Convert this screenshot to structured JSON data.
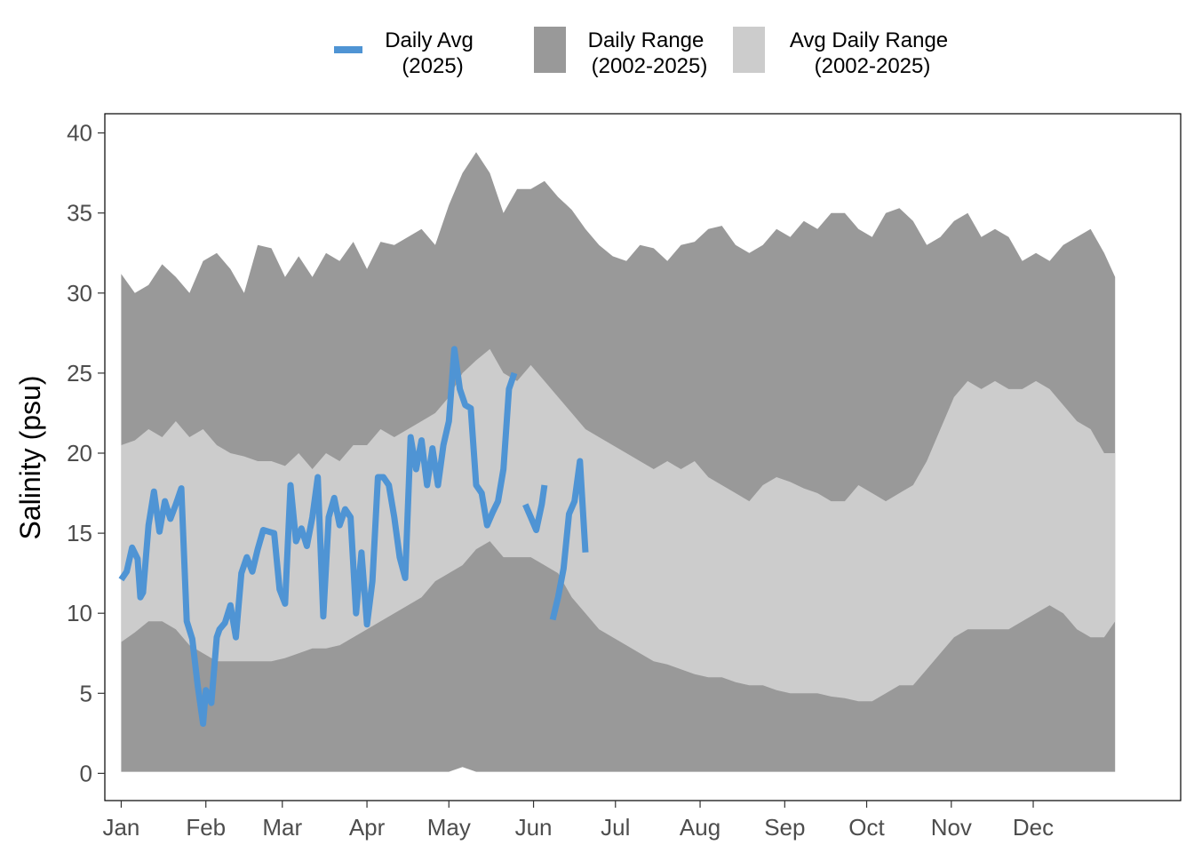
{
  "chart_data": {
    "type": "area",
    "title": "",
    "xlabel": "",
    "ylabel": "Salinity (psu)",
    "ylim": [
      -1.7,
      41.2
    ],
    "xlim": [
      -6,
      388
    ],
    "yticks": [
      0,
      5,
      10,
      15,
      20,
      25,
      30,
      35,
      40
    ],
    "month_ticks": [
      {
        "label": "Jan",
        "day": 0
      },
      {
        "label": "Feb",
        "day": 31
      },
      {
        "label": "Mar",
        "day": 59
      },
      {
        "label": "Apr",
        "day": 90
      },
      {
        "label": "May",
        "day": 120
      },
      {
        "label": "Jun",
        "day": 151
      },
      {
        "label": "Jul",
        "day": 181
      },
      {
        "label": "Aug",
        "day": 212
      },
      {
        "label": "Sep",
        "day": 243
      },
      {
        "label": "Oct",
        "day": 273
      },
      {
        "label": "Nov",
        "day": 304
      },
      {
        "label": "Dec",
        "day": 334
      }
    ],
    "x_unit": "day of year (0 = Jan 1)",
    "grid": false,
    "legend_position": "top",
    "legend": [
      {
        "label_line1": "Daily Avg",
        "label_line2": "(2025)",
        "kind": "line",
        "color": "#4f94d4"
      },
      {
        "label_line1": "Daily Range",
        "label_line2": "(2002-2025)",
        "kind": "fill",
        "color": "#999999"
      },
      {
        "label_line1": "Avg Daily Range",
        "label_line2": "(2002-2025)",
        "kind": "fill",
        "color": "#cccccc"
      }
    ],
    "colors": {
      "daily_avg": "#4f94d4",
      "daily_range": "#999999",
      "avg_daily_range": "#cccccc"
    },
    "series": [
      {
        "name": "Daily Range (2002-2025)",
        "kind": "band",
        "x": [
          0,
          5,
          10,
          15,
          20,
          25,
          30,
          35,
          40,
          45,
          50,
          55,
          60,
          65,
          70,
          75,
          80,
          85,
          90,
          95,
          100,
          105,
          110,
          115,
          120,
          125,
          130,
          135,
          140,
          145,
          150,
          155,
          160,
          165,
          170,
          175,
          180,
          185,
          190,
          195,
          200,
          205,
          210,
          215,
          220,
          225,
          230,
          235,
          240,
          245,
          250,
          255,
          260,
          265,
          270,
          275,
          280,
          285,
          290,
          295,
          300,
          305,
          310,
          315,
          320,
          325,
          330,
          335,
          340,
          345,
          350,
          355,
          360,
          364
        ],
        "upper": [
          31.2,
          30.0,
          30.5,
          31.8,
          31.0,
          30.0,
          32.0,
          32.5,
          31.5,
          30.0,
          33.0,
          32.8,
          31.0,
          32.3,
          31.0,
          32.5,
          32.0,
          33.2,
          31.5,
          33.2,
          33.0,
          33.5,
          34.0,
          33.0,
          35.5,
          37.5,
          38.8,
          37.5,
          35.0,
          36.5,
          36.5,
          37.0,
          36.0,
          35.2,
          34.0,
          33.0,
          32.3,
          32.0,
          33.0,
          32.8,
          32.0,
          33.0,
          33.2,
          34.0,
          34.2,
          33.0,
          32.5,
          33.0,
          34.0,
          33.5,
          34.5,
          34.0,
          35.0,
          35.0,
          34.0,
          33.5,
          35.0,
          35.3,
          34.5,
          33.0,
          33.5,
          34.5,
          35.0,
          33.5,
          34.0,
          33.5,
          32.0,
          32.5,
          32.0,
          33.0,
          33.5,
          34.0,
          32.5,
          31.0
        ],
        "lower": [
          0.1,
          0.1,
          0.1,
          0.1,
          0.1,
          0.1,
          0.1,
          0.1,
          0.1,
          0.1,
          0.1,
          0.1,
          0.1,
          0.1,
          0.1,
          0.1,
          0.1,
          0.1,
          0.1,
          0.1,
          0.1,
          0.1,
          0.1,
          0.1,
          0.1,
          0.4,
          0.1,
          0.1,
          0.1,
          0.1,
          0.1,
          0.1,
          0.1,
          0.1,
          0.1,
          0.1,
          0.1,
          0.1,
          0.1,
          0.1,
          0.1,
          0.1,
          0.1,
          0.1,
          0.1,
          0.1,
          0.1,
          0.1,
          0.1,
          0.1,
          0.1,
          0.1,
          0.1,
          0.1,
          0.1,
          0.1,
          0.1,
          0.1,
          0.1,
          0.1,
          0.1,
          0.1,
          0.1,
          0.1,
          0.1,
          0.1,
          0.1,
          0.1,
          0.1,
          0.1,
          0.1,
          0.1,
          0.1,
          0.1
        ]
      },
      {
        "name": "Avg Daily Range (2002-2025)",
        "kind": "band",
        "x": [
          0,
          5,
          10,
          15,
          20,
          25,
          30,
          35,
          40,
          45,
          50,
          55,
          60,
          65,
          70,
          75,
          80,
          85,
          90,
          95,
          100,
          105,
          110,
          115,
          120,
          125,
          130,
          135,
          140,
          145,
          150,
          155,
          160,
          165,
          170,
          175,
          180,
          185,
          190,
          195,
          200,
          205,
          210,
          215,
          220,
          225,
          230,
          235,
          240,
          245,
          250,
          255,
          260,
          265,
          270,
          275,
          280,
          285,
          290,
          295,
          300,
          305,
          310,
          315,
          320,
          325,
          330,
          335,
          340,
          345,
          350,
          355,
          360,
          364
        ],
        "upper": [
          20.5,
          20.8,
          21.5,
          21.0,
          22.0,
          21.0,
          21.5,
          20.5,
          20.0,
          19.8,
          19.5,
          19.5,
          19.2,
          20.0,
          19.0,
          20.0,
          19.5,
          20.5,
          20.5,
          21.5,
          21.0,
          21.5,
          22.0,
          22.5,
          23.5,
          25.0,
          25.8,
          26.5,
          25.0,
          24.5,
          25.5,
          24.5,
          23.5,
          22.5,
          21.5,
          21.0,
          20.5,
          20.0,
          19.5,
          19.0,
          19.5,
          19.0,
          19.5,
          18.5,
          18.0,
          17.5,
          17.0,
          18.0,
          18.5,
          18.2,
          17.8,
          17.5,
          17.0,
          17.0,
          18.0,
          17.5,
          17.0,
          17.5,
          18.0,
          19.5,
          21.5,
          23.5,
          24.5,
          24.0,
          24.5,
          24.0,
          24.0,
          24.5,
          24.0,
          23.0,
          22.0,
          21.5,
          20.0,
          20.0
        ],
        "lower": [
          8.2,
          8.8,
          9.5,
          9.5,
          9.0,
          8.0,
          7.5,
          7.0,
          7.0,
          7.0,
          7.0,
          7.0,
          7.2,
          7.5,
          7.8,
          7.8,
          8.0,
          8.5,
          9.0,
          9.5,
          10.0,
          10.5,
          11.0,
          12.0,
          12.5,
          13.0,
          14.0,
          14.5,
          13.5,
          13.5,
          13.5,
          13.0,
          12.5,
          11.0,
          10.0,
          9.0,
          8.5,
          8.0,
          7.5,
          7.0,
          6.8,
          6.5,
          6.2,
          6.0,
          6.0,
          5.7,
          5.5,
          5.5,
          5.2,
          5.0,
          5.0,
          5.0,
          4.8,
          4.7,
          4.5,
          4.5,
          5.0,
          5.5,
          5.5,
          6.5,
          7.5,
          8.5,
          9.0,
          9.0,
          9.0,
          9.0,
          9.5,
          10.0,
          10.5,
          10.0,
          9.0,
          8.5,
          8.5,
          9.5
        ]
      },
      {
        "name": "Daily Avg (2025)",
        "kind": "line",
        "x": [
          0,
          2,
          4,
          6,
          7,
          8,
          10,
          12,
          14,
          16,
          18,
          20,
          22,
          24,
          26,
          28,
          30,
          31,
          33,
          35,
          36,
          38,
          40,
          42,
          44,
          46,
          48,
          50,
          52,
          54,
          56,
          58,
          60,
          62,
          64,
          66,
          68,
          70,
          72,
          74,
          76,
          78,
          80,
          82,
          84,
          86,
          88,
          90,
          92,
          94,
          96,
          98,
          100,
          102,
          104,
          106,
          108,
          110,
          112,
          114,
          116,
          118,
          120,
          122,
          124,
          126,
          128,
          130,
          132,
          134,
          136,
          138,
          140,
          142,
          144,
          146,
          148,
          150,
          152,
          154,
          155,
          156,
          158,
          160,
          162,
          164,
          166,
          168,
          170,
          172,
          174,
          176,
          178,
          180,
          182
        ],
        "y": [
          12.1,
          12.6,
          14.1,
          13.4,
          11.0,
          11.3,
          15.5,
          17.6,
          15.1,
          17.0,
          15.9,
          16.8,
          17.8,
          9.5,
          8.4,
          5.5,
          3.1,
          5.2,
          4.4,
          8.5,
          9.0,
          9.4,
          10.5,
          8.5,
          12.5,
          13.5,
          12.6,
          14.0,
          15.2,
          15.1,
          15.0,
          11.5,
          10.6,
          18.0,
          14.5,
          15.3,
          14.2,
          16.0,
          18.5,
          9.8,
          16.0,
          17.2,
          15.5,
          16.5,
          16.0,
          10.0,
          13.8,
          9.3,
          12.0,
          18.5,
          18.5,
          18.0,
          16.0,
          13.5,
          12.2,
          21.0,
          19.0,
          20.8,
          18.0,
          20.3,
          18.0,
          20.5,
          22.0,
          26.5,
          24.0,
          23.0,
          22.8,
          18.0,
          17.5,
          15.5,
          16.3,
          17.0,
          19.0,
          24.0,
          25.0,
          null,
          16.8,
          16.0,
          15.2,
          16.8,
          18.0,
          null,
          9.6,
          11.0,
          12.8,
          16.2,
          17.0,
          19.5,
          13.8,
          null,
          null,
          null,
          null,
          null,
          null
        ]
      }
    ]
  }
}
